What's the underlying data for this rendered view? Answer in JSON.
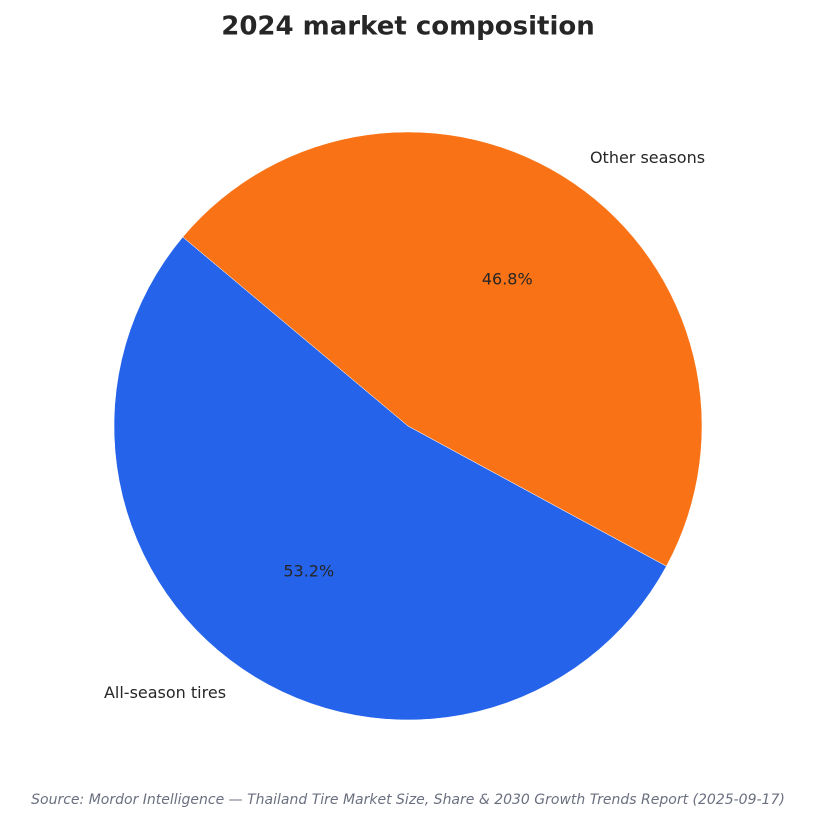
{
  "chart_data": {
    "type": "pie",
    "title": "2024 market composition",
    "categories": [
      "All-season tires",
      "Other seasons"
    ],
    "values": [
      53.2,
      46.8
    ],
    "value_labels": [
      "53.2%",
      "46.8%"
    ],
    "colors": [
      "#2563eb",
      "#f97316"
    ],
    "source": "Source: Mordor Intelligence — Thailand Tire Market Size, Share & 2030 Growth Trends Report (2025-09-17)"
  }
}
